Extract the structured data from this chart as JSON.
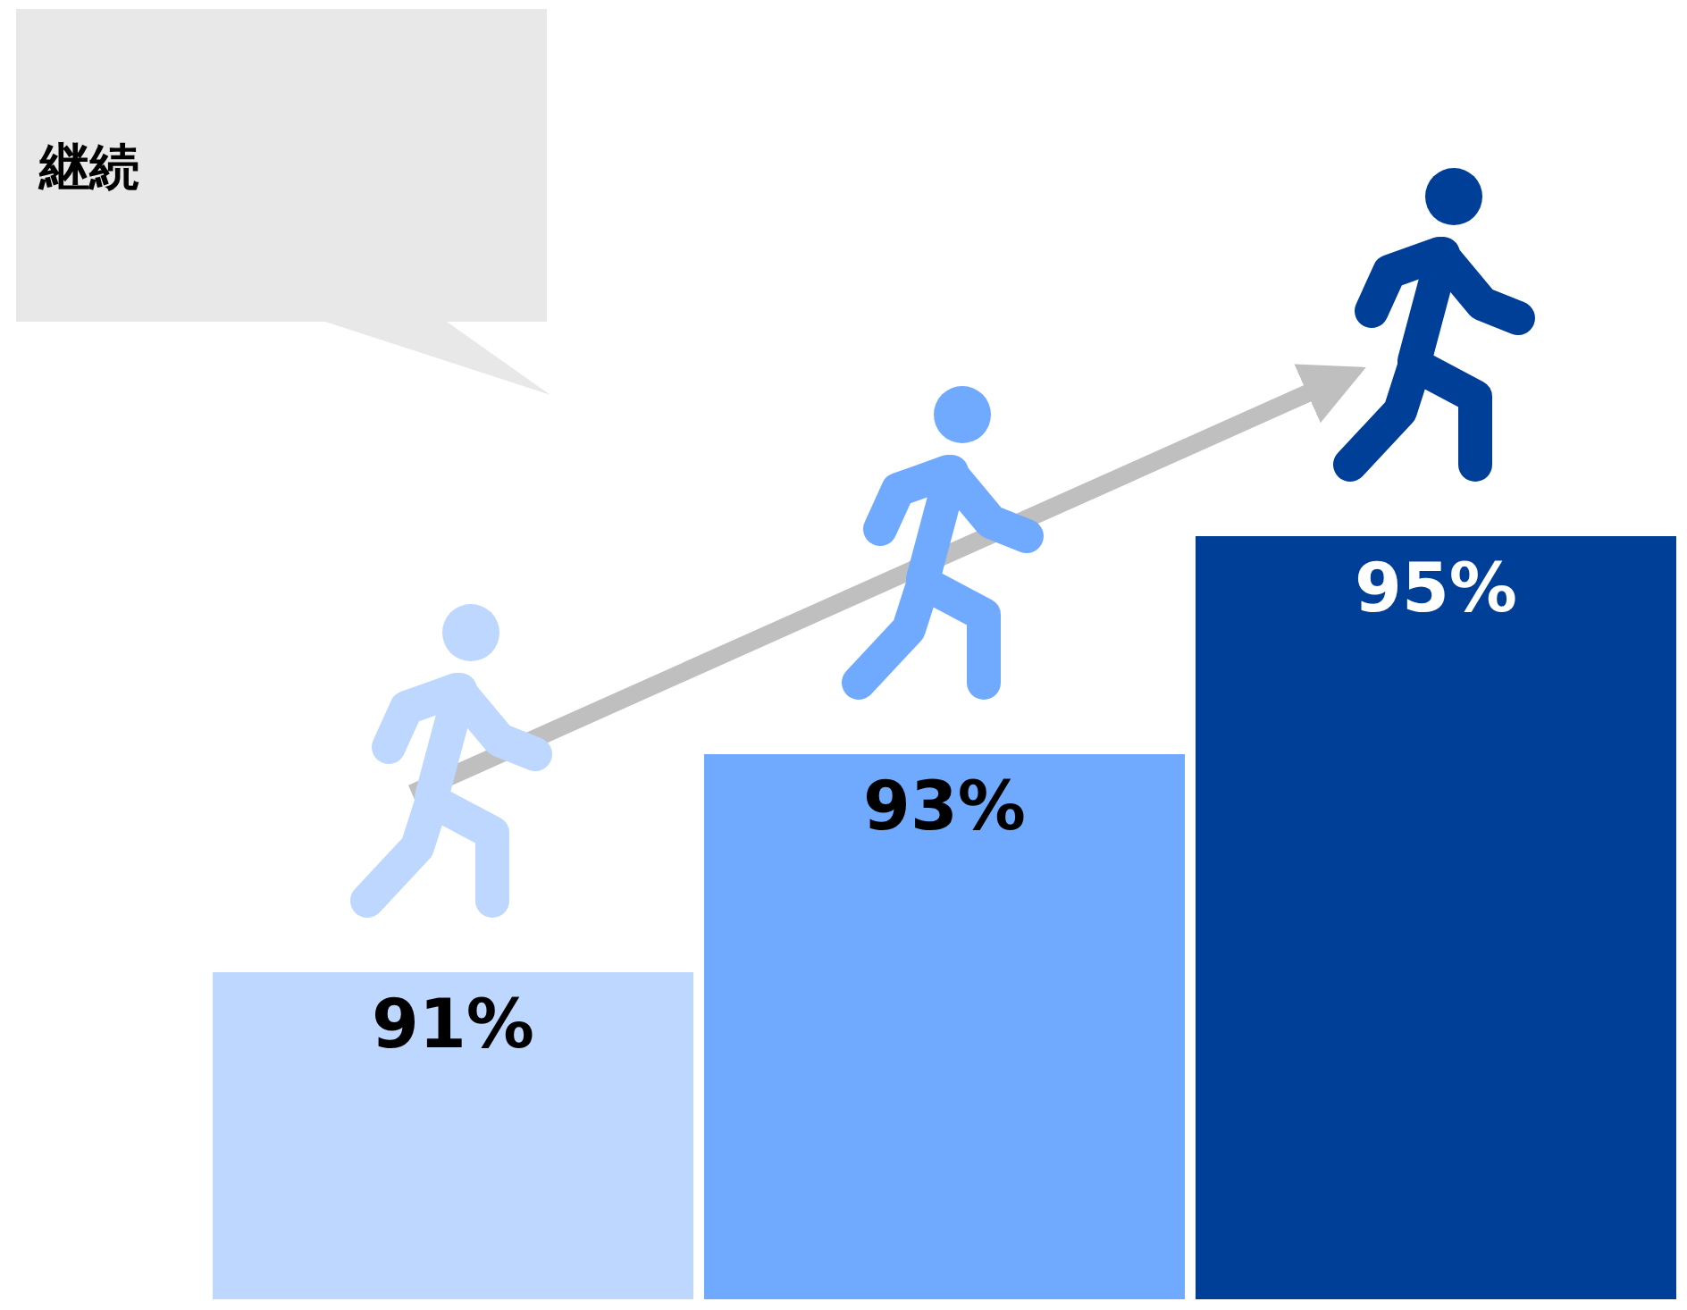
{
  "chart_data": {
    "type": "bar",
    "categories": [
      null,
      null,
      null
    ],
    "values": [
      91,
      93,
      95
    ],
    "colors": [
      "#bdd7ff",
      "#70aaff",
      "#003f98"
    ],
    "value_labels": [
      "91%",
      "93%",
      "95%"
    ],
    "ylim": [
      88,
      95
    ],
    "annotations": [
      "継続"
    ]
  }
}
